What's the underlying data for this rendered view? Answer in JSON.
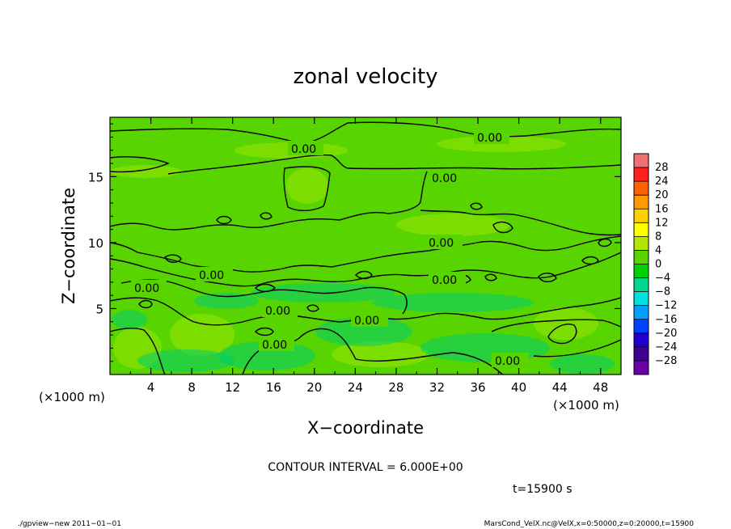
{
  "chart_data": {
    "type": "heatmap",
    "title": "zonal velocity",
    "xlabel": "X−coordinate",
    "ylabel": "Z−coordinate",
    "x_unit": "(×1000 m)",
    "y_unit": "(×1000 m)",
    "xlim": [
      0,
      50
    ],
    "ylim": [
      0,
      19.5
    ],
    "x_ticks": [
      4,
      8,
      12,
      16,
      20,
      24,
      28,
      32,
      36,
      40,
      44,
      48
    ],
    "y_ticks": [
      5,
      10,
      15
    ],
    "contour_interval_text": "CONTOUR INTERVAL = 6.000E+00",
    "contour_labels": [
      "0.00"
    ],
    "time_text": "t=15900 s",
    "colorbar": {
      "levels": [
        28,
        24,
        20,
        16,
        12,
        8,
        4,
        0,
        -4,
        -8,
        -12,
        -16,
        -20,
        -24,
        -28
      ],
      "colors": [
        "#f07070",
        "#ff2020",
        "#ff6000",
        "#ff9a00",
        "#ffd000",
        "#ffff00",
        "#b4e600",
        "#58d400",
        "#00d000",
        "#00d890",
        "#00e0e0",
        "#00a0ff",
        "#0040ff",
        "#2000d0",
        "#400090",
        "#6a00a8"
      ]
    },
    "field_colors": {
      "base": "#58d400",
      "positive": "#9ae600",
      "negative": "#00cc70"
    }
  },
  "footer": {
    "left": "./gpview−new   2011−01−01",
    "right": "MarsCond_VelX.nc@VelX,x=0:50000,z=0:20000,t=15900"
  }
}
